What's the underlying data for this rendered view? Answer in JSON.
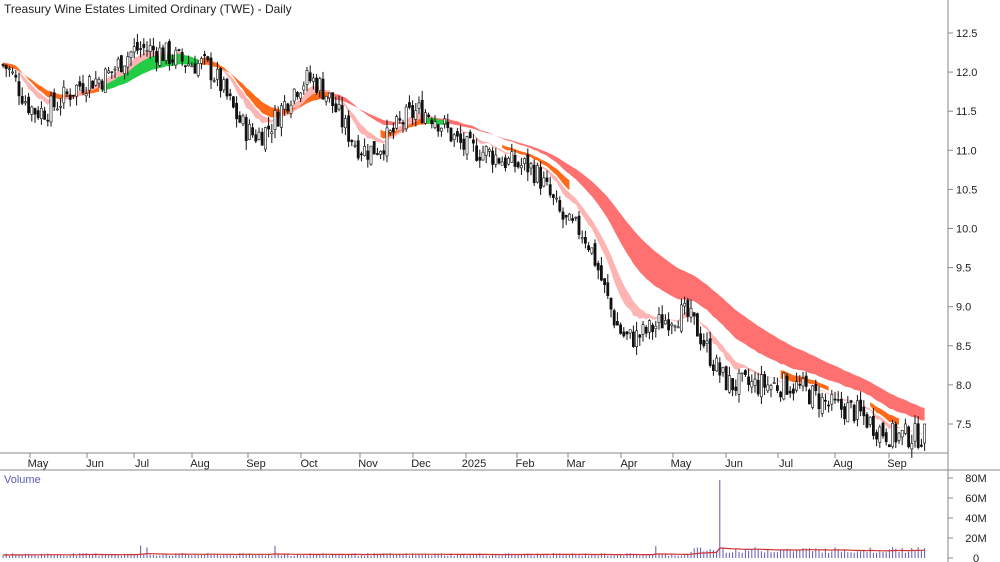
{
  "chart_data": [
    {
      "type": "candlestick",
      "title": "Treasury Wine Estates Limited Ordinary (TWE) - Daily",
      "x_labels": [
        "May",
        "Jun",
        "Jul",
        "Aug",
        "Sep",
        "Oct",
        "Nov",
        "Dec",
        "2025",
        "Feb",
        "Mar",
        "Apr",
        "May",
        "Jun",
        "Jul",
        "Aug",
        "Sep"
      ],
      "y_ticks": [
        "12.5",
        "12.0",
        "11.5",
        "11.0",
        "10.5",
        "10.0",
        "9.5",
        "9.0",
        "8.5",
        "8.0",
        "7.5"
      ],
      "ylim": [
        7.1,
        12.75
      ],
      "grid": false,
      "price_path": [
        {
          "month": "May",
          "close": 11.5
        },
        {
          "month": "Jun",
          "close": 11.9
        },
        {
          "month": "Jul",
          "close": 12.3
        },
        {
          "month": "Aug",
          "close": 12.1
        },
        {
          "month": "Sep",
          "close": 11.2
        },
        {
          "month": "Oct",
          "close": 11.9
        },
        {
          "month": "Nov",
          "close": 11.0
        },
        {
          "month": "Dec",
          "close": 11.5
        },
        {
          "month": "2025",
          "close": 11.0
        },
        {
          "month": "Feb",
          "close": 10.8
        },
        {
          "month": "Mar",
          "close": 10.0
        },
        {
          "month": "Apr",
          "close": 8.6
        },
        {
          "month": "May",
          "close": 8.9
        },
        {
          "month": "Jun",
          "close": 8.0
        },
        {
          "month": "Jul",
          "close": 8.0
        },
        {
          "month": "Aug",
          "close": 7.7
        },
        {
          "month": "Sep",
          "close": 7.35
        }
      ],
      "bands": [
        {
          "color": "#ff7070",
          "description": "long-term band"
        },
        {
          "color": "#ffb4b4",
          "description": "short-term band"
        },
        {
          "color": "#ff6a1a",
          "description": "orange crossover"
        },
        {
          "color": "#22cc44",
          "description": "green crossover"
        }
      ]
    },
    {
      "type": "bar",
      "title": "Volume",
      "y_ticks": [
        "80M",
        "60M",
        "40M",
        "20M",
        "0"
      ],
      "ylim": [
        0,
        80
      ],
      "spike": {
        "month": "May",
        "value": 78
      }
    }
  ]
}
